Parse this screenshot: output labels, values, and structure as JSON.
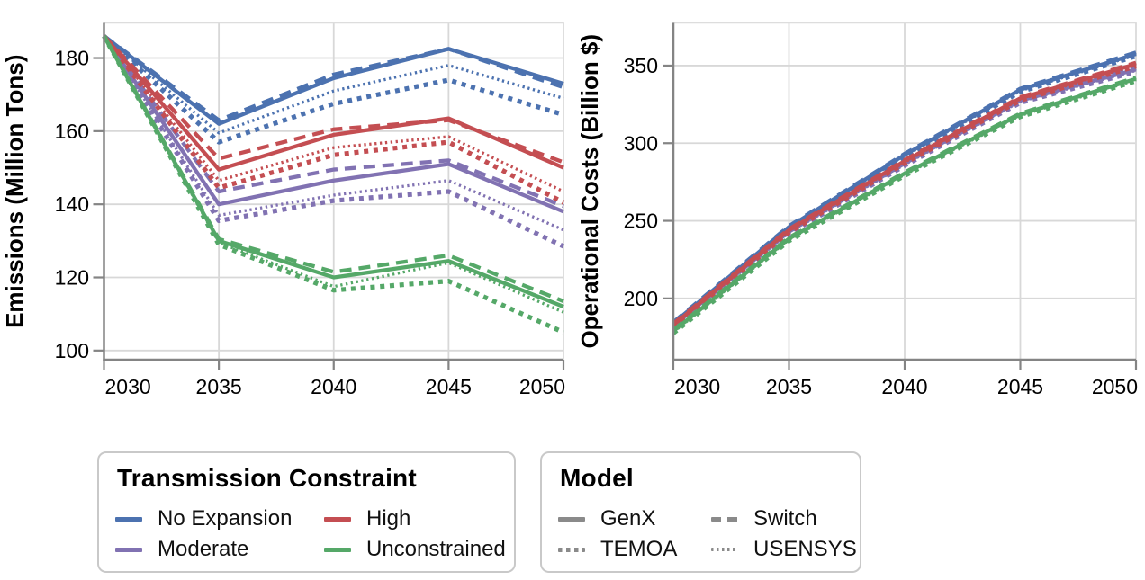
{
  "figure_background": "#ffffff",
  "palette": {
    "no_expansion": "#4C72B0",
    "moderate": "#8172B2",
    "high": "#C44E52",
    "unconstrained": "#55A868",
    "model_gray": "#8a8a8a",
    "grid": "#d8d8d8",
    "view_border": "#dddddd",
    "axis_domain": "#848484",
    "tick_label": "#000000"
  },
  "legends": {
    "constraint": {
      "title": "Transmission Constraint",
      "items": [
        {
          "label": "No Expansion",
          "color": "#4C72B0",
          "dash": "solid"
        },
        {
          "label": "Moderate",
          "color": "#8172B2",
          "dash": "solid"
        },
        {
          "label": "High",
          "color": "#C44E52",
          "dash": "solid"
        },
        {
          "label": "Unconstrained",
          "color": "#55A868",
          "dash": "solid"
        }
      ]
    },
    "model": {
      "title": "Model",
      "items": [
        {
          "label": "GenX",
          "color": "#8a8a8a",
          "dash": "solid"
        },
        {
          "label": "TEMOA",
          "color": "#8a8a8a",
          "dash": "dotted-heavy"
        },
        {
          "label": "Switch",
          "color": "#8a8a8a",
          "dash": "dashed"
        },
        {
          "label": "USENSYS",
          "color": "#8a8a8a",
          "dash": "dotted-fine"
        }
      ]
    }
  },
  "chart_data": [
    {
      "type": "line",
      "title": "",
      "xlabel": "",
      "ylabel": "Emissions (Million Tons)",
      "x": [
        2030,
        2035,
        2040,
        2045,
        2050
      ],
      "xticks": [
        2030,
        2035,
        2040,
        2045,
        2050
      ],
      "yticks": [
        100,
        120,
        140,
        160,
        180
      ],
      "xlim": [
        2030,
        2050
      ],
      "ylim": [
        97.5,
        189.6
      ],
      "grid": true,
      "series": [
        {
          "constraint": "No Expansion",
          "model": "TEMOA",
          "dash": "dotted-heavy",
          "color": "#4C72B0",
          "values": [
            186,
            157,
            167.5,
            174,
            164.5
          ]
        },
        {
          "constraint": "No Expansion",
          "model": "USENSYS",
          "dash": "dotted-fine",
          "color": "#4C72B0",
          "values": [
            186,
            159.5,
            171,
            178,
            169
          ]
        },
        {
          "constraint": "No Expansion",
          "model": "GenX",
          "dash": "solid",
          "color": "#4C72B0",
          "values": [
            186,
            162,
            174.5,
            182.5,
            173
          ]
        },
        {
          "constraint": "No Expansion",
          "model": "Switch",
          "dash": "dashed",
          "color": "#4C72B0",
          "values": [
            186,
            163,
            175.5,
            182.5,
            172
          ]
        },
        {
          "constraint": "Moderate",
          "model": "TEMOA",
          "dash": "dotted-heavy",
          "color": "#8172B2",
          "values": [
            186,
            135.5,
            141,
            143.5,
            128.5
          ]
        },
        {
          "constraint": "Moderate",
          "model": "USENSYS",
          "dash": "dotted-fine",
          "color": "#8172B2",
          "values": [
            186,
            137,
            142.5,
            146.5,
            133
          ]
        },
        {
          "constraint": "Moderate",
          "model": "GenX",
          "dash": "solid",
          "color": "#8172B2",
          "values": [
            186,
            140,
            146.5,
            151,
            138
          ]
        },
        {
          "constraint": "Moderate",
          "model": "Switch",
          "dash": "dashed",
          "color": "#8172B2",
          "values": [
            186,
            143.5,
            149.5,
            152,
            139.5
          ]
        },
        {
          "constraint": "High",
          "model": "TEMOA",
          "dash": "dotted-heavy",
          "color": "#C44E52",
          "values": [
            186,
            144.5,
            153.5,
            157,
            140.5
          ]
        },
        {
          "constraint": "High",
          "model": "USENSYS",
          "dash": "dotted-fine",
          "color": "#C44E52",
          "values": [
            186,
            146.5,
            155.5,
            158.5,
            143.5
          ]
        },
        {
          "constraint": "High",
          "model": "GenX",
          "dash": "solid",
          "color": "#C44E52",
          "values": [
            186,
            149.5,
            159,
            163.5,
            150
          ]
        },
        {
          "constraint": "High",
          "model": "Switch",
          "dash": "dashed",
          "color": "#C44E52",
          "values": [
            186,
            152.5,
            160.5,
            163,
            151.5
          ]
        },
        {
          "constraint": "Unconstrained",
          "model": "TEMOA",
          "dash": "dotted-heavy",
          "color": "#55A868",
          "values": [
            186,
            129,
            116.5,
            119,
            105
          ]
        },
        {
          "constraint": "Unconstrained",
          "model": "USENSYS",
          "dash": "dotted-fine",
          "color": "#55A868",
          "values": [
            186,
            129.5,
            117.5,
            124,
            110.5
          ]
        },
        {
          "constraint": "Unconstrained",
          "model": "GenX",
          "dash": "solid",
          "color": "#55A868",
          "values": [
            186,
            130,
            120,
            124.5,
            112
          ]
        },
        {
          "constraint": "Unconstrained",
          "model": "Switch",
          "dash": "dashed",
          "color": "#55A868",
          "values": [
            186,
            130.5,
            121.5,
            126,
            113.5
          ]
        }
      ]
    },
    {
      "type": "line",
      "title": "",
      "xlabel": "",
      "ylabel": "Operational Costs (Billion $)",
      "x": [
        2030,
        2035,
        2040,
        2045,
        2050
      ],
      "xticks": [
        2030,
        2035,
        2040,
        2045,
        2050
      ],
      "yticks": [
        200,
        250,
        300,
        350
      ],
      "xlim": [
        2030,
        2050
      ],
      "ylim": [
        160.5,
        377.5
      ],
      "grid": true,
      "series": [
        {
          "constraint": "No Expansion",
          "model": "TEMOA",
          "dash": "dotted-heavy",
          "color": "#4C72B0",
          "values": [
            182.6,
            244.6,
            291.1,
            333.1,
            356.1
          ]
        },
        {
          "constraint": "No Expansion",
          "model": "USENSYS",
          "dash": "dotted-fine",
          "color": "#4C72B0",
          "values": [
            183.3,
            245.3,
            291.8,
            333.8,
            356.8
          ]
        },
        {
          "constraint": "No Expansion",
          "model": "GenX",
          "dash": "solid",
          "color": "#4C72B0",
          "values": [
            184,
            246,
            292.5,
            334.5,
            357.5
          ]
        },
        {
          "constraint": "No Expansion",
          "model": "Switch",
          "dash": "dashed",
          "color": "#4C72B0",
          "values": [
            184.7,
            246.7,
            293.2,
            335.2,
            358.5
          ]
        },
        {
          "constraint": "Moderate",
          "model": "TEMOA",
          "dash": "dotted-heavy",
          "color": "#8172B2",
          "values": [
            181.1,
            241.6,
            285.6,
            326.1,
            346.1
          ]
        },
        {
          "constraint": "Moderate",
          "model": "USENSYS",
          "dash": "dotted-fine",
          "color": "#8172B2",
          "values": [
            181.8,
            242.3,
            286.3,
            326.8,
            346.8
          ]
        },
        {
          "constraint": "Moderate",
          "model": "GenX",
          "dash": "solid",
          "color": "#8172B2",
          "values": [
            182.5,
            243,
            287,
            327.5,
            347.5
          ]
        },
        {
          "constraint": "Moderate",
          "model": "Switch",
          "dash": "dashed",
          "color": "#8172B2",
          "values": [
            183.2,
            243.7,
            287.7,
            328.2,
            348.3
          ]
        },
        {
          "constraint": "High",
          "model": "TEMOA",
          "dash": "dotted-heavy",
          "color": "#C44E52",
          "values": [
            181.6,
            242.6,
            287.1,
            327.6,
            349.6
          ]
        },
        {
          "constraint": "High",
          "model": "USENSYS",
          "dash": "dotted-fine",
          "color": "#C44E52",
          "values": [
            182.3,
            243.3,
            287.8,
            328.3,
            350.3
          ]
        },
        {
          "constraint": "High",
          "model": "GenX",
          "dash": "solid",
          "color": "#C44E52",
          "values": [
            183,
            244,
            288.5,
            329,
            351
          ]
        },
        {
          "constraint": "High",
          "model": "Switch",
          "dash": "dashed",
          "color": "#C44E52",
          "values": [
            183.7,
            244.7,
            289.2,
            329.7,
            351.9
          ]
        },
        {
          "constraint": "Unconstrained",
          "model": "TEMOA",
          "dash": "dotted-heavy",
          "color": "#55A868",
          "values": [
            177.6,
            237.1,
            279.1,
            317.1,
            340.1
          ]
        },
        {
          "constraint": "Unconstrained",
          "model": "USENSYS",
          "dash": "dotted-fine",
          "color": "#55A868",
          "values": [
            178.3,
            237.8,
            279.8,
            317.8,
            340.8
          ]
        },
        {
          "constraint": "Unconstrained",
          "model": "GenX",
          "dash": "solid",
          "color": "#55A868",
          "values": [
            179,
            238.5,
            280.5,
            318.5,
            341.5
          ]
        },
        {
          "constraint": "Unconstrained",
          "model": "Switch",
          "dash": "dashed",
          "color": "#55A868",
          "values": [
            179.7,
            239.2,
            281.2,
            319.2,
            342.3
          ]
        }
      ]
    }
  ]
}
